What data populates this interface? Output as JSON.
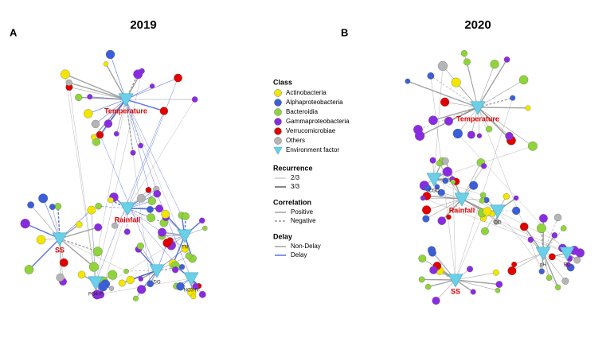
{
  "panels": [
    {
      "label": "A",
      "title": "2019",
      "factors": [
        {
          "label": "Temperature"
        },
        {
          "label": "Rainfall"
        },
        {
          "label": "SS"
        },
        {
          "label": "TN"
        },
        {
          "label": "PO4-P"
        },
        {
          "label": "NO3-N"
        },
        {
          "label": "DO"
        }
      ]
    },
    {
      "label": "B",
      "title": "2020",
      "factors": [
        {
          "label": "Temperature"
        },
        {
          "label": "COD"
        },
        {
          "label": "Rainfall"
        },
        {
          "label": "SS"
        },
        {
          "label": "pH"
        },
        {
          "label": "EC"
        },
        {
          "label": "DO"
        }
      ]
    }
  ],
  "legend": {
    "class_title": "Class",
    "classes": [
      {
        "label": "Actinobacteria",
        "color": "#f2e600"
      },
      {
        "label": "Alphaproteobacteria",
        "color": "#3b5fd9"
      },
      {
        "label": "Bacteroidia",
        "color": "#8fd43a"
      },
      {
        "label": "Gammaproteobacteria",
        "color": "#8a2be2"
      },
      {
        "label": "Verrucomicrobiae",
        "color": "#e00000"
      },
      {
        "label": "Others",
        "color": "#b5b5b5"
      },
      {
        "label": "Environment factor",
        "color": "#6ad0e8"
      }
    ],
    "recurrence_title": "Recurrence",
    "recurrence": [
      "2/3",
      "3/3"
    ],
    "correlation_title": "Correlation",
    "correlation": [
      "Positive",
      "Negative"
    ],
    "delay_title": "Delay",
    "delay": [
      "Non-Delay",
      "Delay"
    ]
  }
}
